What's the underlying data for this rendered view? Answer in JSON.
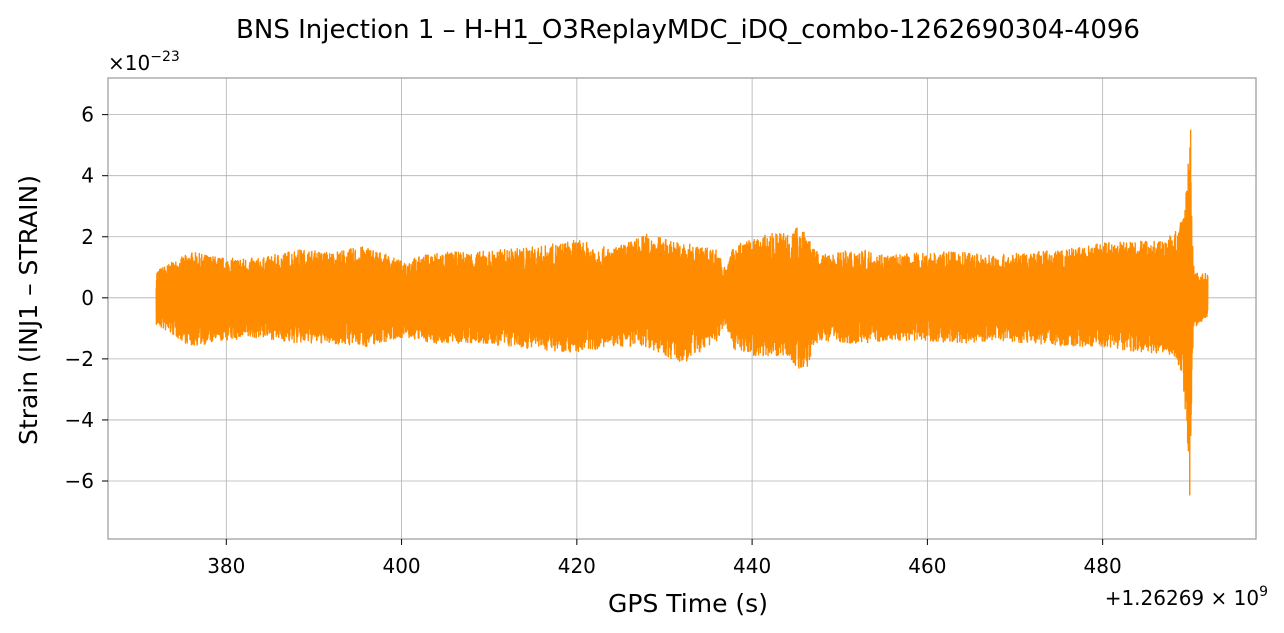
{
  "chart_data": {
    "type": "line",
    "title": "BNS Injection 1 – H-H1_O3ReplayMDC_iDQ_combo-1262690304-4096",
    "xlabel": "GPS Time (s)",
    "ylabel": "Strain (INJ1 – STRAIN)",
    "x_offset_text": "+1.26269 × 10",
    "x_offset_exponent": "9",
    "y_scale_text": "×10",
    "y_scale_exponent": "−23",
    "xlim": [
      366.5,
      497.5
    ],
    "ylim": [
      -7.9,
      7.2
    ],
    "x_ticks": [
      380,
      400,
      420,
      440,
      460,
      480
    ],
    "x_tick_labels": [
      "380",
      "400",
      "420",
      "440",
      "460",
      "480"
    ],
    "y_ticks": [
      -6,
      -4,
      -2,
      0,
      2,
      4,
      6
    ],
    "y_tick_labels": [
      "−6",
      "−4",
      "−2",
      "0",
      "2",
      "4",
      "6"
    ],
    "grid": true,
    "line_color": "#ff8c00",
    "series": [
      {
        "x_start": 372.0,
        "x_end": 492.0,
        "envelope": {
          "x": [
            372,
            376,
            380,
            384,
            388,
            392,
            396,
            400,
            404,
            408,
            412,
            416,
            420,
            424,
            428,
            432,
            436,
            437,
            438,
            440,
            442,
            444,
            446,
            447,
            448,
            452,
            456,
            460,
            464,
            468,
            472,
            476,
            480,
            484,
            487,
            488,
            489,
            489.5,
            489.8,
            490,
            490.2,
            490.5,
            491,
            492
          ],
          "upper": [
            0.9,
            1.5,
            1.3,
            1.3,
            1.6,
            1.5,
            1.7,
            1.2,
            1.5,
            1.5,
            1.6,
            1.7,
            1.9,
            1.6,
            2.1,
            1.8,
            1.6,
            0.9,
            1.8,
            1.9,
            2.1,
            2.2,
            2.4,
            1.6,
            1.4,
            1.6,
            1.4,
            1.5,
            1.5,
            1.4,
            1.5,
            1.6,
            1.8,
            1.9,
            1.9,
            2.1,
            2.5,
            3.5,
            4.8,
            6.5,
            2.0,
            0.9,
            0.8,
            0.8
          ],
          "lower": [
            -0.9,
            -1.6,
            -1.4,
            -1.3,
            -1.5,
            -1.5,
            -1.6,
            -1.3,
            -1.5,
            -1.5,
            -1.6,
            -1.7,
            -1.8,
            -1.6,
            -1.6,
            -2.2,
            -1.4,
            -0.9,
            -1.7,
            -1.9,
            -1.9,
            -1.9,
            -2.6,
            -1.6,
            -1.4,
            -1.5,
            -1.4,
            -1.4,
            -1.5,
            -1.4,
            -1.5,
            -1.6,
            -1.6,
            -1.8,
            -1.8,
            -2.0,
            -2.7,
            -4.0,
            -5.5,
            -7.2,
            -2.0,
            -1.0,
            -0.8,
            -0.7
          ]
        }
      }
    ]
  }
}
